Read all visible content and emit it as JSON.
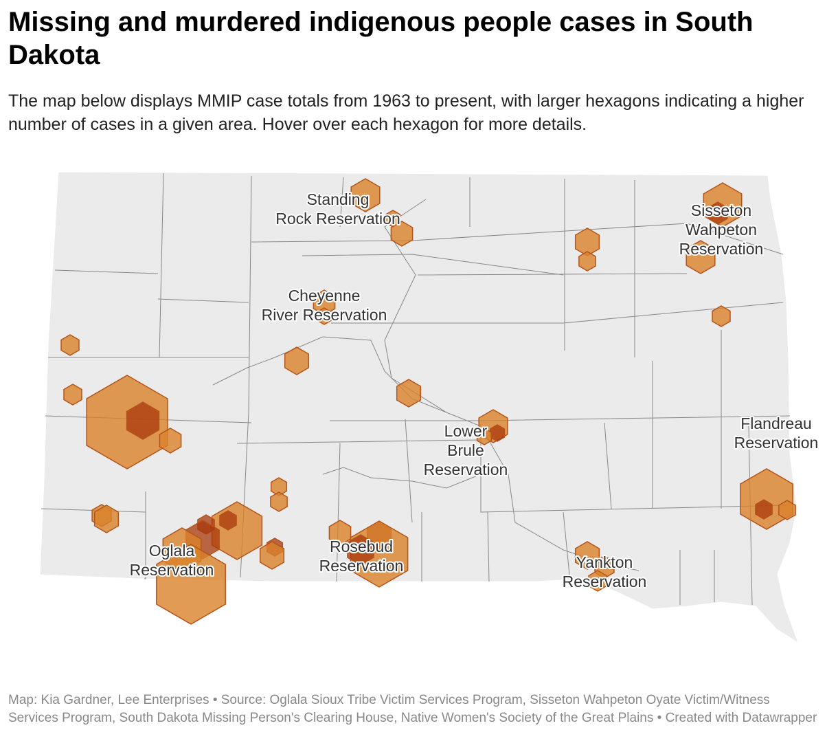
{
  "header": {
    "title": "Missing and murdered indigenous people cases in South Dakota",
    "description": "The map below displays MMIP case totals from 1963 to present, with larger hexagons indicating a higher number of cases in a given area. Hover over each hexagon for more details."
  },
  "map": {
    "labels": [
      [
        "Standing",
        "Rock Reservation"
      ],
      [
        "Sisseton",
        "Wahpeton",
        "Reservation"
      ],
      [
        "Cheyenne",
        "River Reservation"
      ],
      [
        "Lower",
        "Brule",
        "Reservation"
      ],
      [
        "Flandreau",
        "Reservation"
      ],
      [
        "Oglala",
        "Reservation"
      ],
      [
        "Rosebud",
        "Reservation"
      ],
      [
        "Yankton",
        "Reservation"
      ]
    ]
  },
  "footer": {
    "text": "Map: Kia Gardner, Lee Enterprises • Source: Oglala Sioux Tribe Victim Services Program, Sisseton Wahpeton Oyate Victim/Witness Services Program, South Dakota Missing Person's Clearing House, Native Women's Society of the Great Plains • Created with Datawrapper"
  }
}
